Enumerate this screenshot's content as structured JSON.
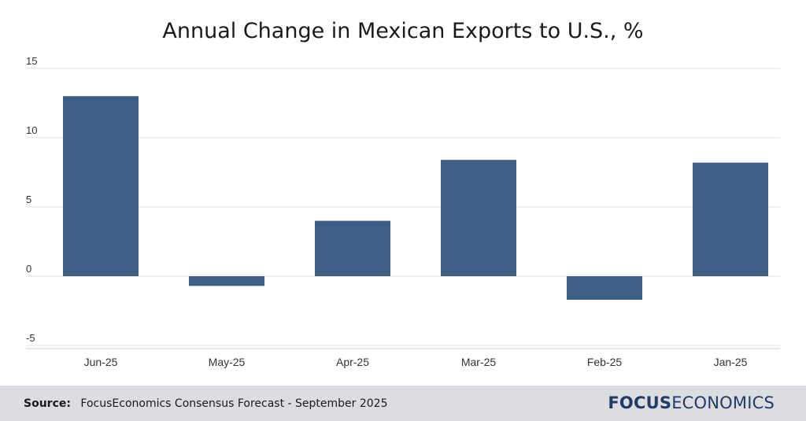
{
  "chart_data": {
    "type": "bar",
    "title": "Annual Change in Mexican Exports to U.S., %",
    "categories": [
      "Jun-25",
      "May-25",
      "Apr-25",
      "Mar-25",
      "Feb-25",
      "Jan-25"
    ],
    "values": [
      13.0,
      -0.7,
      4.0,
      8.4,
      -1.7,
      8.2
    ],
    "ylim": [
      -5,
      15
    ],
    "yticks": [
      15,
      10,
      5,
      0,
      -5
    ],
    "grid": true,
    "bar_color": "#3d5f86"
  },
  "footer": {
    "source_label": "Source:",
    "source_text": "FocusEconomics Consensus Forecast - September 2025",
    "logo_bold": "FOCUS",
    "logo_rest": "ECONOMICS"
  }
}
